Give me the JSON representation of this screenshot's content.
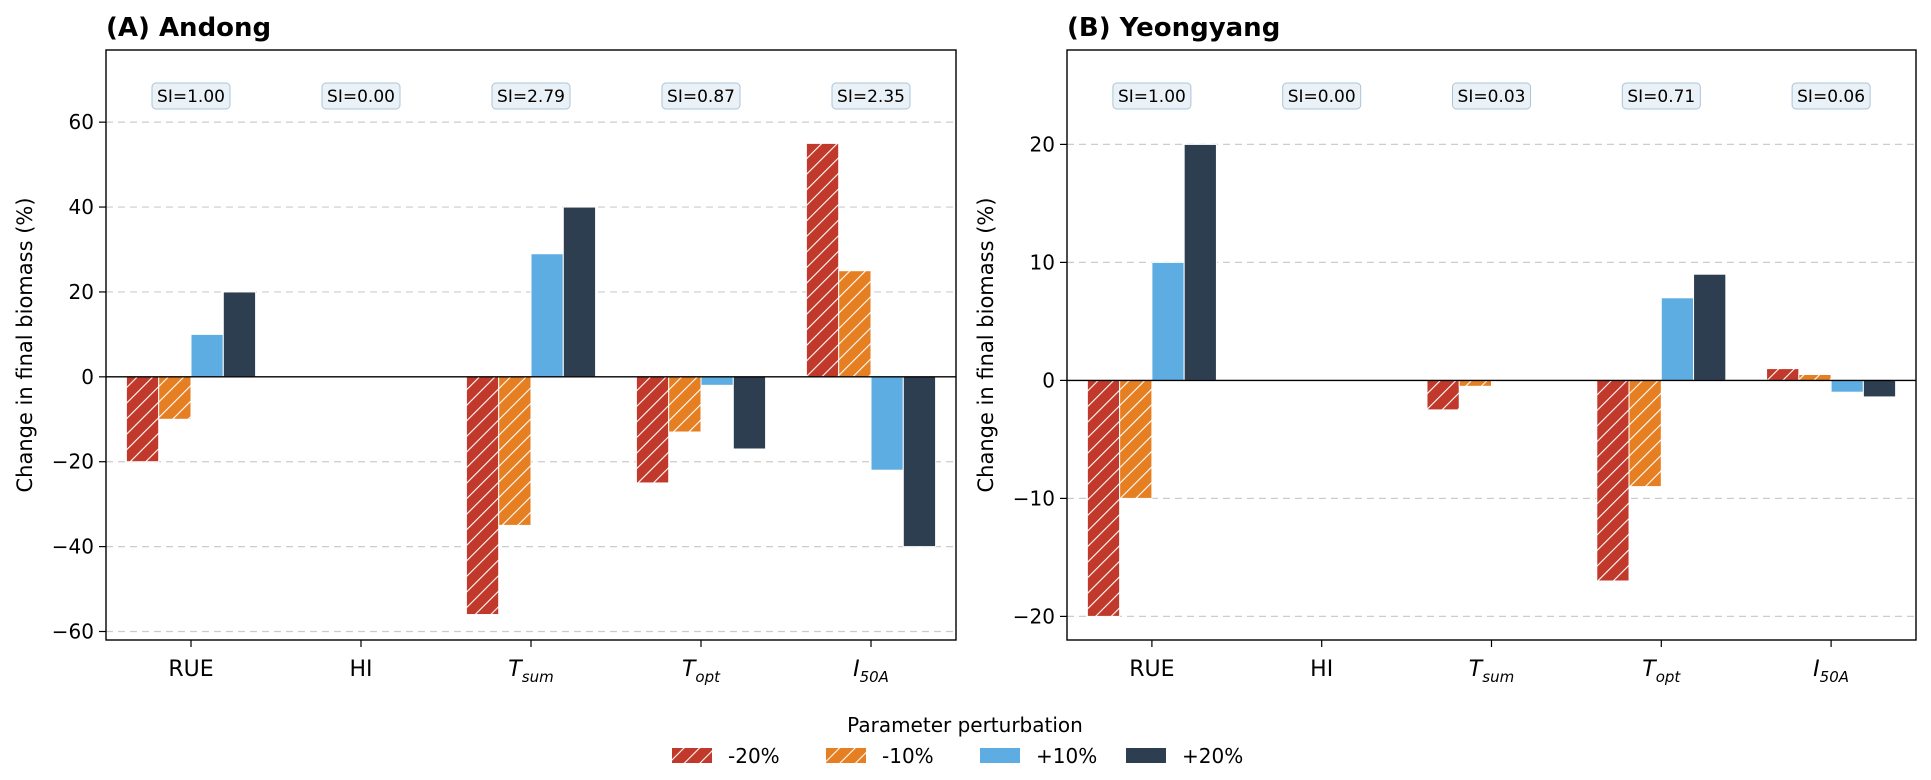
{
  "colors": {
    "neg20": "#c0392b",
    "neg10": "#e67e22",
    "pos10": "#5dade2",
    "pos20": "#2c3e50"
  },
  "legend": {
    "title": "Parameter perturbation",
    "entries": [
      {
        "label": "-20%",
        "color": "#c0392b",
        "hatch": true
      },
      {
        "label": "-10%",
        "color": "#e67e22",
        "hatch": true
      },
      {
        "label": "+10%",
        "color": "#5dade2",
        "hatch": false
      },
      {
        "label": "+20%",
        "color": "#2c3e50",
        "hatch": false
      }
    ]
  },
  "chart_data": [
    {
      "type": "bar",
      "title": "(A) Andong",
      "ylabel": "Change in final biomass (%)",
      "categories": [
        {
          "base": "RUE",
          "sub": ""
        },
        {
          "base": "HI",
          "sub": ""
        },
        {
          "base": "T",
          "sub": "sum"
        },
        {
          "base": "T",
          "sub": "opt"
        },
        {
          "base": "I",
          "sub": "50A"
        }
      ],
      "si_labels": [
        "SI=1.00",
        "SI=0.00",
        "SI=2.79",
        "SI=0.87",
        "SI=2.35"
      ],
      "ylim": [
        -62,
        77
      ],
      "yticks": [
        -60,
        -40,
        -20,
        0,
        20,
        40,
        60
      ],
      "grid": true,
      "series": [
        {
          "name": "-20%",
          "values": [
            -20,
            0,
            -56,
            -25,
            55
          ]
        },
        {
          "name": "-10%",
          "values": [
            -10,
            0,
            -35,
            -13,
            25
          ]
        },
        {
          "name": "+10%",
          "values": [
            10,
            0,
            29,
            -2,
            -22
          ]
        },
        {
          "name": "+20%",
          "values": [
            20,
            0,
            40,
            -17,
            -40
          ]
        }
      ]
    },
    {
      "type": "bar",
      "title": "(B) Yeongyang",
      "ylabel": "Change in final biomass (%)",
      "categories": [
        {
          "base": "RUE",
          "sub": ""
        },
        {
          "base": "HI",
          "sub": ""
        },
        {
          "base": "T",
          "sub": "sum"
        },
        {
          "base": "T",
          "sub": "opt"
        },
        {
          "base": "I",
          "sub": "50A"
        }
      ],
      "si_labels": [
        "SI=1.00",
        "SI=0.00",
        "SI=0.03",
        "SI=0.71",
        "SI=0.06"
      ],
      "ylim": [
        -22,
        28
      ],
      "yticks": [
        -20,
        -10,
        0,
        10,
        20
      ],
      "grid": true,
      "series": [
        {
          "name": "-20%",
          "values": [
            -20,
            0,
            -2.5,
            -17,
            1
          ]
        },
        {
          "name": "-10%",
          "values": [
            -10,
            0,
            -0.5,
            -9,
            0.5
          ]
        },
        {
          "name": "+10%",
          "values": [
            10,
            0,
            0,
            7,
            -1
          ]
        },
        {
          "name": "+20%",
          "values": [
            20,
            0,
            0,
            9,
            -1.4
          ]
        }
      ]
    }
  ]
}
